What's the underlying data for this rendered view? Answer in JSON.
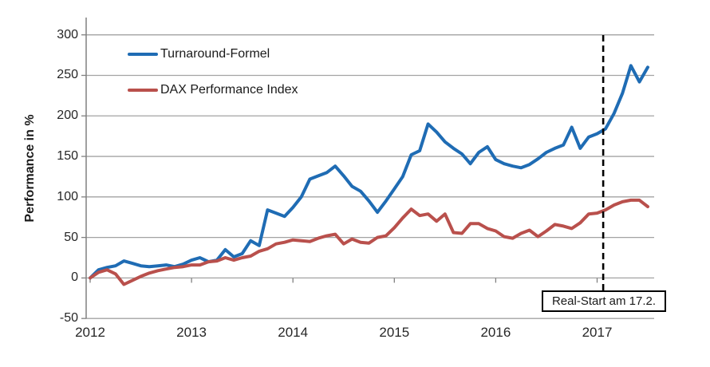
{
  "colors": {
    "series1": "#1F6CB4",
    "series2": "#B9504C",
    "gridline": "#A3A3A3",
    "axis": "#808080",
    "marker_line": "#000000",
    "text": "#262626"
  },
  "chart_data": {
    "type": "line",
    "title": "",
    "xlabel": "",
    "ylabel": "Performance in %",
    "ylim": [
      -50,
      325
    ],
    "yticks": [
      300,
      250,
      200,
      150,
      100,
      50,
      0,
      -50
    ],
    "xticks": [
      2012,
      2013,
      2014,
      2015,
      2016,
      2017
    ],
    "grid": "horizontal",
    "legend_position": "inside-top-left",
    "x": [
      2012.0,
      2012.083,
      2012.167,
      2012.25,
      2012.333,
      2012.417,
      2012.5,
      2012.583,
      2012.667,
      2012.75,
      2012.833,
      2012.917,
      2013.0,
      2013.083,
      2013.167,
      2013.25,
      2013.333,
      2013.417,
      2013.5,
      2013.583,
      2013.667,
      2013.75,
      2013.833,
      2013.917,
      2014.0,
      2014.083,
      2014.167,
      2014.25,
      2014.333,
      2014.417,
      2014.5,
      2014.583,
      2014.667,
      2014.75,
      2014.833,
      2014.917,
      2015.0,
      2015.083,
      2015.167,
      2015.25,
      2015.333,
      2015.417,
      2015.5,
      2015.583,
      2015.667,
      2015.75,
      2015.833,
      2015.917,
      2016.0,
      2016.083,
      2016.167,
      2016.25,
      2016.333,
      2016.417,
      2016.5,
      2016.583,
      2016.667,
      2016.75,
      2016.833,
      2016.917,
      2017.0,
      2017.083,
      2017.167,
      2017.25,
      2017.333,
      2017.417,
      2017.5
    ],
    "series": [
      {
        "name": "Turnaround-Formel",
        "color": "#1F6CB4",
        "values": [
          0,
          10,
          13,
          15,
          21,
          18,
          15,
          14,
          15,
          16,
          14,
          17,
          22,
          25,
          20,
          22,
          35,
          26,
          30,
          46,
          40,
          84,
          80,
          76,
          87,
          100,
          122,
          126,
          130,
          138,
          126,
          113,
          107,
          95,
          81,
          95,
          110,
          125,
          152,
          157,
          190,
          180,
          168,
          160,
          153,
          141,
          155,
          162,
          146,
          141,
          138,
          136,
          140,
          147,
          155,
          160,
          164,
          186,
          160,
          174,
          178,
          184,
          203,
          228,
          262,
          242,
          260
        ]
      },
      {
        "name": "DAX Performance Index",
        "color": "#B9504C",
        "values": [
          0,
          7,
          10,
          5,
          -8,
          -3,
          2,
          6,
          9,
          11,
          13,
          14,
          16,
          16,
          20,
          21,
          25,
          22,
          25,
          27,
          33,
          36,
          42,
          44,
          47,
          46,
          45,
          49,
          52,
          54,
          42,
          48,
          44,
          43,
          50,
          52,
          62,
          74,
          85,
          77,
          79,
          70,
          79,
          56,
          55,
          67,
          67,
          61,
          58,
          51,
          49,
          55,
          59,
          51,
          58,
          66,
          64,
          61,
          68,
          79,
          80,
          84,
          90,
          94,
          96,
          96,
          88
        ]
      }
    ],
    "annotation": {
      "text": "Real-Start am 17.2.",
      "x_year": 2017.06,
      "line_style": "dashed-vertical"
    }
  }
}
